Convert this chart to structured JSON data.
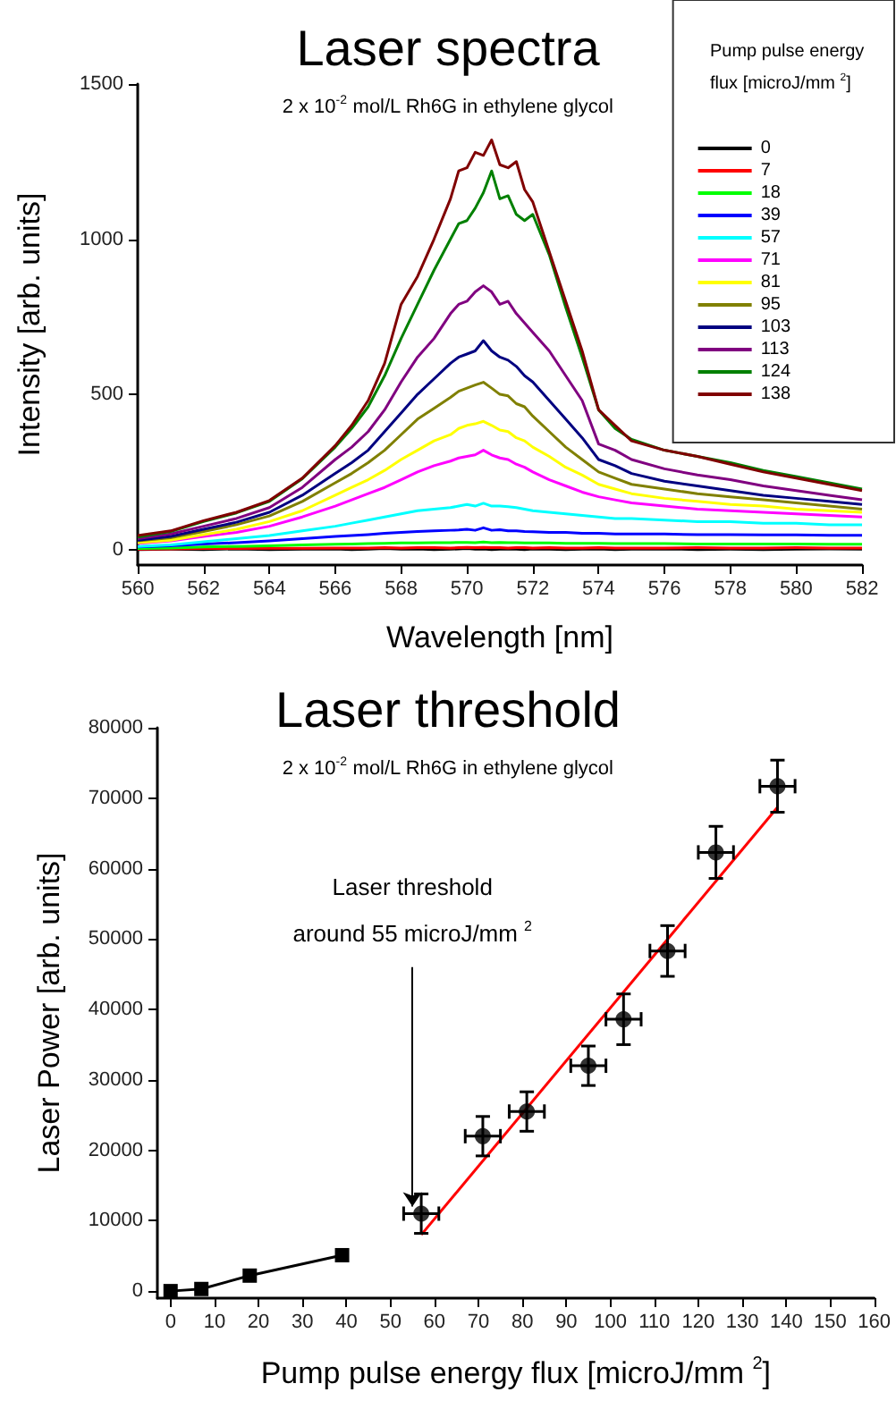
{
  "chart_data": [
    {
      "type": "line",
      "title": "Laser spectra",
      "subtitle": "2 x 10$^{-2}$ mol/L Rh6G in ethylene glycol",
      "xlabel": "Wavelength [nm]",
      "ylabel": "Intensity [arb. units]",
      "legend_title": "Pump pulse energy flux [microJ/mm $^{2}$]",
      "legend": "top right",
      "marker": "none",
      "x": [
        560,
        561,
        562,
        563,
        564,
        565,
        566,
        566.5,
        567,
        567.5,
        568,
        568.5,
        569,
        569.5,
        569.75,
        570,
        570.25,
        570.5,
        570.75,
        571,
        571.25,
        571.5,
        571.75,
        572,
        572.5,
        573,
        573.5,
        574,
        574.5,
        575,
        576,
        577,
        578,
        579,
        580,
        581,
        582
      ],
      "xlim": [
        560,
        582
      ],
      "xticks": [
        560,
        562,
        564,
        566,
        568,
        570,
        572,
        574,
        576,
        578,
        580,
        582
      ],
      "ylim": [
        -50,
        1500
      ],
      "yticks": [
        0,
        500,
        1000,
        1500
      ],
      "series": [
        {
          "name": "0",
          "color": "#000000",
          "values": [
            0,
            1,
            0,
            2,
            0,
            1,
            2,
            0,
            1,
            3,
            1,
            2,
            0,
            1,
            2,
            3,
            1,
            2,
            0,
            1,
            2,
            1,
            0,
            2,
            1,
            0,
            1,
            2,
            0,
            1,
            2,
            0,
            1,
            0,
            1,
            2,
            1
          ]
        },
        {
          "name": "7",
          "color": "#ff0000",
          "values": [
            1,
            2,
            3,
            3,
            4,
            4,
            5,
            5,
            5,
            6,
            5,
            6,
            6,
            5,
            6,
            7,
            6,
            7,
            6,
            6,
            5,
            6,
            6,
            5,
            6,
            5,
            5,
            6,
            5,
            5,
            5,
            6,
            5,
            5,
            6,
            5,
            5
          ]
        },
        {
          "name": "18",
          "color": "#00ff00",
          "values": [
            3,
            5,
            8,
            10,
            12,
            15,
            17,
            18,
            19,
            20,
            21,
            21,
            22,
            22,
            23,
            23,
            22,
            24,
            22,
            23,
            22,
            22,
            21,
            21,
            21,
            20,
            20,
            20,
            19,
            19,
            19,
            18,
            18,
            18,
            18,
            17,
            17
          ]
        },
        {
          "name": "39",
          "color": "#0000ff",
          "values": [
            8,
            12,
            18,
            22,
            28,
            35,
            42,
            45,
            48,
            52,
            55,
            58,
            60,
            62,
            63,
            65,
            62,
            70,
            62,
            64,
            60,
            60,
            58,
            57,
            55,
            55,
            52,
            52,
            50,
            50,
            50,
            48,
            48,
            47,
            47,
            46,
            46
          ]
        },
        {
          "name": "57",
          "color": "#00ffff",
          "values": [
            10,
            15,
            25,
            35,
            45,
            60,
            75,
            85,
            95,
            105,
            115,
            125,
            130,
            135,
            140,
            145,
            140,
            149,
            140,
            140,
            138,
            135,
            130,
            125,
            120,
            115,
            110,
            105,
            100,
            100,
            95,
            90,
            90,
            85,
            85,
            80,
            80
          ]
        },
        {
          "name": "71",
          "color": "#ff00ff",
          "values": [
            20,
            28,
            42,
            55,
            75,
            105,
            140,
            160,
            180,
            200,
            225,
            250,
            270,
            285,
            295,
            300,
            305,
            320,
            305,
            295,
            290,
            275,
            265,
            250,
            225,
            205,
            185,
            170,
            160,
            150,
            140,
            130,
            125,
            120,
            115,
            110,
            105
          ]
        },
        {
          "name": "81",
          "color": "#ffff00",
          "values": [
            22,
            30,
            48,
            65,
            90,
            125,
            175,
            200,
            225,
            255,
            290,
            320,
            350,
            370,
            390,
            400,
            405,
            413,
            400,
            385,
            380,
            360,
            350,
            330,
            300,
            265,
            240,
            210,
            195,
            180,
            165,
            155,
            145,
            140,
            130,
            125,
            120
          ]
        },
        {
          "name": "95",
          "color": "#808000",
          "values": [
            28,
            38,
            58,
            80,
            108,
            155,
            215,
            245,
            280,
            320,
            370,
            420,
            455,
            490,
            510,
            520,
            530,
            539,
            520,
            500,
            495,
            470,
            460,
            430,
            380,
            330,
            290,
            250,
            230,
            210,
            195,
            180,
            170,
            160,
            150,
            140,
            130
          ]
        },
        {
          "name": "103",
          "color": "#000080",
          "values": [
            30,
            42,
            65,
            88,
            120,
            175,
            245,
            280,
            320,
            380,
            440,
            500,
            550,
            600,
            620,
            630,
            640,
            673,
            640,
            620,
            610,
            590,
            560,
            540,
            480,
            420,
            360,
            290,
            270,
            245,
            220,
            205,
            190,
            175,
            165,
            155,
            145
          ]
        },
        {
          "name": "113",
          "color": "#800080",
          "values": [
            35,
            50,
            75,
            100,
            135,
            200,
            290,
            330,
            380,
            450,
            540,
            620,
            680,
            760,
            790,
            800,
            830,
            850,
            830,
            790,
            800,
            760,
            730,
            700,
            640,
            560,
            480,
            340,
            320,
            290,
            260,
            240,
            225,
            205,
            190,
            175,
            160
          ]
        },
        {
          "name": "124",
          "color": "#008000",
          "values": [
            40,
            58,
            90,
            118,
            155,
            228,
            330,
            390,
            460,
            560,
            680,
            790,
            900,
            1000,
            1050,
            1060,
            1100,
            1150,
            1220,
            1130,
            1140,
            1080,
            1060,
            1080,
            950,
            780,
            620,
            450,
            390,
            355,
            320,
            300,
            280,
            255,
            235,
            215,
            195
          ]
        },
        {
          "name": "138",
          "color": "#800000",
          "values": [
            45,
            60,
            93,
            120,
            158,
            230,
            335,
            400,
            480,
            600,
            790,
            880,
            1000,
            1130,
            1220,
            1230,
            1280,
            1270,
            1320,
            1240,
            1230,
            1250,
            1160,
            1120,
            960,
            800,
            640,
            450,
            400,
            350,
            320,
            300,
            275,
            250,
            230,
            210,
            190
          ]
        }
      ]
    },
    {
      "type": "scatter",
      "title": "Laser threshold",
      "subtitle": "2 x 10$^{-2}$ mol/L Rh6G in ethylene glycol",
      "xlabel": "Pump pulse energy flux [microJ/mm $^{2}$]",
      "ylabel": "Laser Power [arb. units]",
      "annotations": [
        {
          "text": "Laser threshold\naround 55 microJ/mm $^{2}$",
          "x": 55,
          "y": 12000
        }
      ],
      "xlim": [
        -3,
        160
      ],
      "xticks": [
        0,
        10,
        20,
        30,
        40,
        50,
        60,
        70,
        80,
        90,
        100,
        110,
        120,
        130,
        140,
        150,
        160
      ],
      "ylim": [
        -1000,
        80000
      ],
      "yticks": [
        0,
        10000,
        20000,
        30000,
        40000,
        50000,
        60000,
        70000,
        80000
      ],
      "series": [
        {
          "type": "line",
          "color": "#000000",
          "marker": "square",
          "x": [
            0,
            7,
            18,
            39
          ],
          "values": [
            0,
            300,
            2200,
            5100
          ]
        },
        {
          "type": "scatter",
          "color": "#000000",
          "marker": "circle",
          "x": [
            57,
            71,
            81,
            95,
            103,
            113,
            124,
            138
          ],
          "values": [
            11000,
            22000,
            25500,
            32000,
            38600,
            48300,
            62300,
            71700
          ],
          "errors": [
            2800,
            2800,
            2800,
            2800,
            3600,
            3600,
            3700,
            3700
          ],
          "xerrors": [
            4,
            4,
            4,
            4,
            4,
            4,
            4,
            4
          ]
        },
        {
          "type": "line",
          "color": "#ff0000",
          "marker": "none",
          "x": [
            57,
            138
          ],
          "values": [
            8000,
            68700
          ]
        }
      ]
    }
  ]
}
